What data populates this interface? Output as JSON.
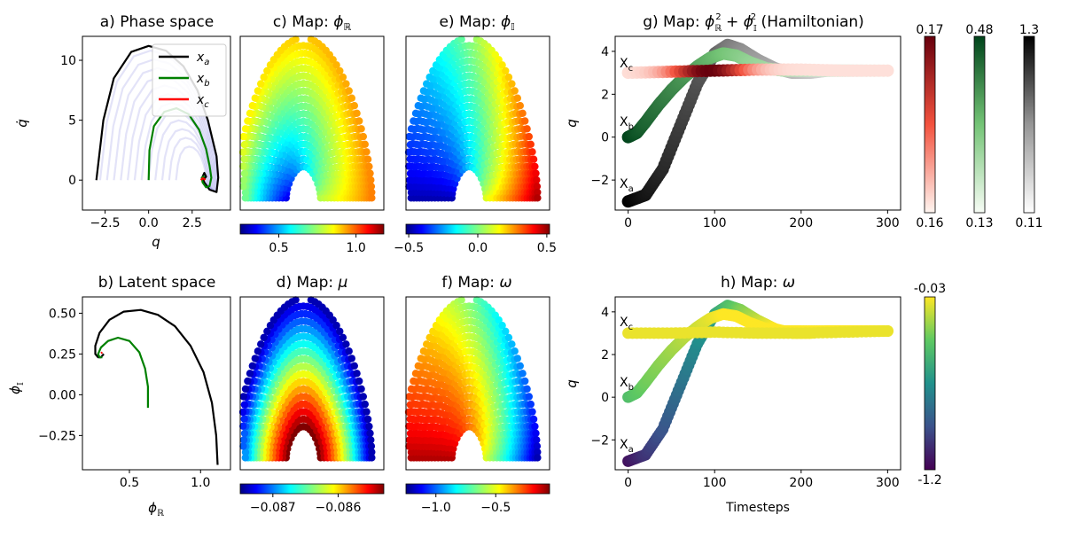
{
  "chart_data": [
    {
      "id": "a",
      "type": "line",
      "title": "a) Phase space",
      "xlabel": "q",
      "ylabel": "q̇",
      "xlim": [
        -3.8,
        4.7
      ],
      "ylim": [
        -2.5,
        12.0
      ],
      "xticks": [
        -2.5,
        0.0,
        2.5
      ],
      "xticklabels": [
        "−2.5",
        "0.0",
        "2.5"
      ],
      "yticks": [
        0,
        5,
        10
      ],
      "yticklabels": [
        "0",
        "5",
        "10"
      ],
      "legend": {
        "placement": "top-right",
        "entries": [
          "x_a",
          "x_b",
          "x_c"
        ]
      },
      "series": [
        {
          "name": "x_a",
          "color": "#000000",
          "x": [
            -3.0,
            -2.6,
            -2.0,
            -1.0,
            0.0,
            1.0,
            2.0,
            2.8,
            3.4,
            3.9,
            4.0,
            3.9,
            3.5,
            3.2,
            3.1,
            3.2,
            3.3,
            3.2,
            3.1
          ],
          "y": [
            0.0,
            5.0,
            8.5,
            10.7,
            11.2,
            10.8,
            9.5,
            7.5,
            5.0,
            2.0,
            0.2,
            -1.0,
            -0.8,
            -0.2,
            0.3,
            0.6,
            0.3,
            0.1,
            0.2
          ]
        },
        {
          "name": "x_b",
          "color": "#008000",
          "x": [
            0.0,
            0.05,
            0.3,
            0.9,
            1.6,
            2.3,
            2.9,
            3.3,
            3.5,
            3.6,
            3.5,
            3.3,
            3.1,
            3.05,
            3.15,
            3.2
          ],
          "y": [
            0.0,
            2.5,
            4.5,
            5.7,
            6.0,
            5.5,
            4.2,
            2.6,
            1.2,
            0.2,
            -0.5,
            -0.6,
            -0.2,
            0.2,
            0.3,
            0.2
          ]
        },
        {
          "name": "x_c",
          "color": "#ff0000",
          "x": [
            3.0,
            3.1,
            3.2,
            3.25
          ],
          "y": [
            0.0,
            0.15,
            0.1,
            0.0
          ]
        }
      ]
    },
    {
      "id": "b",
      "type": "line",
      "title": "b) Latent space",
      "xlabel": "φℝ",
      "ylabel": "φ𝕀",
      "xlim": [
        0.17,
        1.21
      ],
      "ylim": [
        -0.46,
        0.6
      ],
      "xticks": [
        0.5,
        1.0
      ],
      "xticklabels": [
        "0.5",
        "1.0"
      ],
      "yticks": [
        -0.25,
        0.0,
        0.25,
        0.5
      ],
      "yticklabels": [
        "−0.25",
        "0.00",
        "0.25",
        "0.50"
      ],
      "series": [
        {
          "name": "",
          "color": "#000000",
          "x": [
            1.12,
            1.11,
            1.08,
            1.02,
            0.93,
            0.82,
            0.7,
            0.58,
            0.46,
            0.36,
            0.29,
            0.26,
            0.26,
            0.28,
            0.3,
            0.31,
            0.32
          ],
          "y": [
            -0.43,
            -0.25,
            -0.05,
            0.14,
            0.3,
            0.42,
            0.49,
            0.52,
            0.51,
            0.46,
            0.38,
            0.3,
            0.25,
            0.23,
            0.23,
            0.24,
            0.25
          ]
        },
        {
          "name": "",
          "color": "#008000",
          "x": [
            0.63,
            0.63,
            0.61,
            0.57,
            0.5,
            0.42,
            0.35,
            0.3,
            0.28,
            0.29,
            0.31
          ],
          "y": [
            -0.08,
            0.05,
            0.16,
            0.26,
            0.33,
            0.35,
            0.33,
            0.29,
            0.25,
            0.23,
            0.23
          ]
        },
        {
          "name": "",
          "color": "#ff0000",
          "x": [
            0.3,
            0.31
          ],
          "y": [
            0.255,
            0.26
          ]
        }
      ]
    },
    {
      "id": "c",
      "type": "scatter",
      "title": "c) Map: φℝ",
      "colorbar": {
        "orientation": "horizontal",
        "colormap": "jet",
        "range": [
          0.25,
          1.18
        ],
        "ticks": [
          0.5,
          1.0
        ],
        "ticklabels": [
          "0.5",
          "1.0"
        ]
      }
    },
    {
      "id": "e",
      "type": "scatter",
      "title": "e) Map: φ𝕀",
      "colorbar": {
        "orientation": "horizontal",
        "colormap": "jet",
        "range": [
          -0.52,
          0.52
        ],
        "ticks": [
          -0.5,
          0.0,
          0.5
        ],
        "ticklabels": [
          "−0.5",
          "0.0",
          "0.5"
        ]
      }
    },
    {
      "id": "d",
      "type": "scatter",
      "title": "d) Map: μ",
      "colorbar": {
        "orientation": "horizontal",
        "colormap": "jet",
        "range": [
          -0.0875,
          -0.0853
        ],
        "ticks": [
          -0.087,
          -0.086
        ],
        "ticklabels": [
          "−0.087",
          "−0.086"
        ]
      }
    },
    {
      "id": "f",
      "type": "scatter",
      "title": "f) Map: ω",
      "colorbar": {
        "orientation": "horizontal",
        "colormap": "jet",
        "range": [
          -1.25,
          -0.05
        ],
        "ticks": [
          -1.0,
          -0.5
        ],
        "ticklabels": [
          "−1.0",
          "−0.5"
        ]
      }
    },
    {
      "id": "g",
      "type": "scatter",
      "title": "g) Map: φℝ² + φ𝕀² (Hamiltonian)",
      "xlabel": "",
      "ylabel": "q",
      "xlim": [
        -15,
        315
      ],
      "ylim": [
        -3.4,
        4.7
      ],
      "xticks": [
        0,
        100,
        200,
        300
      ],
      "xticklabels": [
        "0",
        "100",
        "200",
        "300"
      ],
      "yticks": [
        -2,
        0,
        2,
        4
      ],
      "yticklabels": [
        "−2",
        "0",
        "2",
        "4"
      ],
      "series": [
        {
          "name": "X_a",
          "colormap": "Greys",
          "x": [
            0,
            20,
            40,
            60,
            80,
            100,
            115,
            130,
            150,
            170,
            190,
            210,
            230,
            250,
            270,
            300
          ],
          "y": [
            -3.0,
            -2.7,
            -1.5,
            0.5,
            2.5,
            3.9,
            4.3,
            4.1,
            3.6,
            3.2,
            3.0,
            3.0,
            3.1,
            3.1,
            3.1,
            3.1
          ]
        },
        {
          "name": "X_b",
          "colormap": "Greens",
          "x": [
            0,
            10,
            20,
            35,
            50,
            65,
            80,
            95,
            110,
            125,
            140,
            160,
            180,
            200,
            230,
            260,
            300
          ],
          "y": [
            0.0,
            0.2,
            0.7,
            1.5,
            2.2,
            2.8,
            3.3,
            3.7,
            3.9,
            3.8,
            3.5,
            3.2,
            3.1,
            3.1,
            3.1,
            3.1,
            3.1
          ]
        },
        {
          "name": "X_c",
          "colormap": "Reds",
          "x": [
            0,
            50,
            100,
            150,
            200,
            250,
            300
          ],
          "y": [
            3.0,
            3.05,
            3.1,
            3.15,
            3.15,
            3.1,
            3.1
          ]
        }
      ],
      "annotations": [
        "X_c",
        "X_b",
        "X_a"
      ]
    },
    {
      "id": "h",
      "type": "scatter",
      "title": "h) Map: ω",
      "xlabel": "Timesteps",
      "ylabel": "q",
      "xlim": [
        -15,
        315
      ],
      "ylim": [
        -3.4,
        4.7
      ],
      "xticks": [
        0,
        100,
        200,
        300
      ],
      "xticklabels": [
        "0",
        "100",
        "200",
        "300"
      ],
      "yticks": [
        -2,
        0,
        2,
        4
      ],
      "yticklabels": [
        "−2",
        "0",
        "2",
        "4"
      ],
      "series": [
        {
          "name": "X_a",
          "x": [
            0,
            20,
            40,
            60,
            80,
            100,
            115,
            130,
            150,
            170,
            190,
            210,
            230,
            250,
            270,
            300
          ],
          "y": [
            -3.0,
            -2.7,
            -1.5,
            0.5,
            2.5,
            3.9,
            4.3,
            4.1,
            3.6,
            3.2,
            3.0,
            3.0,
            3.1,
            3.1,
            3.1,
            3.1
          ]
        },
        {
          "name": "X_b",
          "x": [
            0,
            10,
            20,
            35,
            50,
            65,
            80,
            95,
            110,
            125,
            140,
            160,
            180,
            200,
            230,
            260,
            300
          ],
          "y": [
            0.0,
            0.2,
            0.7,
            1.5,
            2.2,
            2.8,
            3.3,
            3.7,
            3.9,
            3.8,
            3.5,
            3.2,
            3.1,
            3.1,
            3.1,
            3.1,
            3.1
          ]
        },
        {
          "name": "X_c",
          "x": [
            0,
            50,
            100,
            150,
            200,
            250,
            300
          ],
          "y": [
            3.0,
            3.0,
            3.05,
            3.0,
            3.0,
            3.05,
            3.1
          ]
        }
      ],
      "annotations": [
        "X_c",
        "X_b",
        "X_a"
      ]
    }
  ],
  "colorbars_right": [
    {
      "id": "red",
      "colormap": "Reds",
      "max": "0.17",
      "min": "0.16"
    },
    {
      "id": "green",
      "colormap": "Greens",
      "max": "0.48",
      "min": "0.13"
    },
    {
      "id": "grey",
      "colormap": "Greys",
      "max": "1.3",
      "min": "0.11"
    },
    {
      "id": "viridis",
      "colormap": "viridis",
      "max": "-0.03",
      "min": "-1.2"
    }
  ],
  "colors": {
    "x_a": "#000000",
    "x_b": "#008000",
    "x_c": "#ff0000",
    "phase_cloud": "#8080dd"
  }
}
